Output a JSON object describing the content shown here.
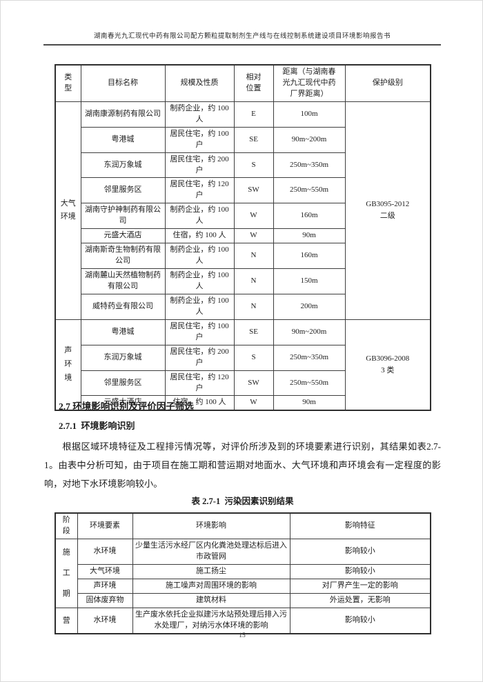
{
  "page": {
    "header_title": "湖南春光九汇现代中药有限公司配方颗粒提取制剂生产线与在线控制系统建设项目环境影响报告书",
    "page_number": "15"
  },
  "protection_table": {
    "headers": [
      "类\n型",
      "目标名称",
      "规模及性质",
      "相对\n位置",
      "距离（与湖南春\n光九汇现代中药\n厂界距离）",
      "保护级别"
    ],
    "groups": [
      {
        "type": "大气\n环境",
        "protection": "GB3095-2012\n二级",
        "rows": [
          [
            "湖南康源制药有限公司",
            "制药企业，约 100 人",
            "E",
            "100m"
          ],
          [
            "粤港城",
            "居民住宅，约 100 户",
            "SE",
            "90m~200m"
          ],
          [
            "东润万象城",
            "居民住宅，约 200 户",
            "S",
            "250m~350m"
          ],
          [
            "邻里服务区",
            "居民住宅，约 120 户",
            "SW",
            "250m~550m"
          ],
          [
            "湖南守护神制药有限公司",
            "制药企业，约 100 人",
            "W",
            "160m"
          ],
          [
            "元盛大酒店",
            "住宿，约 100 人",
            "W",
            "90m"
          ],
          [
            "湖南斯奇生物制药有限公司",
            "制药企业，约 100 人",
            "N",
            "160m"
          ],
          [
            "湖南麓山天然植物制药有限公司",
            "制药企业，约 100 人",
            "N",
            "150m"
          ],
          [
            "威特药业有限公司",
            "制药企业，约 100 人",
            "N",
            "200m"
          ]
        ]
      },
      {
        "type": "声\n环\n境",
        "protection": "GB3096-2008\n3 类",
        "rows": [
          [
            "粤港城",
            "居民住宅，约 100 户",
            "SE",
            "90m~200m"
          ],
          [
            "东润万象城",
            "居民住宅，约 200 户",
            "S",
            "250m~350m"
          ],
          [
            "邻里服务区",
            "居民住宅，约 120 户",
            "SW",
            "250m~550m"
          ],
          [
            "元盛大酒店",
            "住宿，约 100 人",
            "W",
            "90m"
          ]
        ]
      }
    ]
  },
  "section": {
    "heading": "2.7 环境影响识别及评价因子筛选",
    "subheading": "2.7.1  环境影响识别",
    "paragraph": "根据区域环境特征及工程排污情况等，对评价所涉及到的环境要素进行识别，其结果如表2.7-1。由表中分析可知，由于项目在施工期和营运期对地面水、大气环境和声环境会有一定程度的影响，对地下水环境影响较小。",
    "table_caption": "表 2.7-1  污染因素识别结果"
  },
  "pollution_table": {
    "headers": [
      "阶\n段",
      "环境要素",
      "环境影响",
      "影响特征"
    ],
    "groups": [
      {
        "stage": "施\n工\n期",
        "rows": [
          [
            "水环境",
            "少量生活污水经厂区内化粪池处理达标后进入市政管网",
            "影响较小"
          ],
          [
            "大气环境",
            "施工扬尘",
            "影响较小"
          ],
          [
            "声环境",
            "施工噪声对周围环境的影响",
            "对厂界产生一定的影响"
          ],
          [
            "固体废弃物",
            "建筑材料",
            "外运处置，无影响"
          ]
        ]
      },
      {
        "stage": "营",
        "rows": [
          [
            "水环境",
            "生产废水依托企业拟建污水站预处理后排入污水处理厂，对纳污水体环境的影响",
            "影响较小"
          ]
        ]
      }
    ]
  }
}
